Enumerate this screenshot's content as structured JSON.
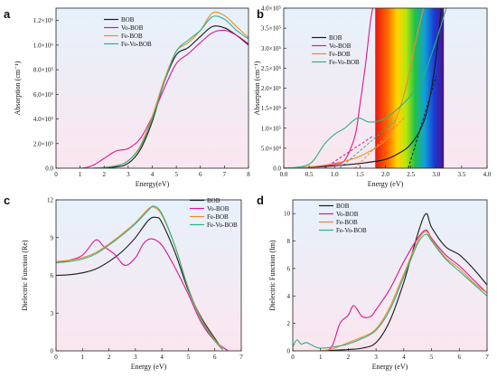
{
  "colors": {
    "BOB": "#1a1a1a",
    "Vo-BOB": "#e0168c",
    "Fe-BOB": "#f08a2c",
    "Fe-Vo-BOB": "#2bb383",
    "bg_top": "#e6f1fb",
    "bg_bottom": "#fbe6ef"
  },
  "chart_data": [
    {
      "panel": "a",
      "type": "line",
      "xlabel": "Energy(eV)",
      "ylabel": "Absorption (cm⁻¹)",
      "xlim": [
        0,
        8
      ],
      "ylim": [
        0,
        1300000
      ],
      "xticks": [
        "0",
        "1",
        "2",
        "3",
        "4",
        "5",
        "6",
        "7",
        "8"
      ],
      "yticks": [
        {
          "v": 0,
          "label": "0.0"
        },
        {
          "v": 200000,
          "label": "2.0×10⁵"
        },
        {
          "v": 400000,
          "label": "4.0×10⁵"
        },
        {
          "v": 600000,
          "label": "6.0×10⁵"
        },
        {
          "v": 800000,
          "label": "8.0×10⁵"
        },
        {
          "v": 1000000,
          "label": "1.0×10⁶"
        },
        {
          "v": 1200000,
          "label": "1.2×10⁶"
        }
      ],
      "legend": [
        "BOB",
        "Vo-BOB",
        "Fe-BOB",
        "Fe-Vo-BOB"
      ],
      "series": [
        {
          "name": "BOB",
          "x": [
            0,
            1.5,
            2.5,
            3,
            3.5,
            4,
            4.5,
            5,
            5.5,
            6,
            6.5,
            7,
            7.5,
            8
          ],
          "y": [
            0,
            0,
            10000,
            40000,
            150000,
            380000,
            700000,
            920000,
            980000,
            1070000,
            1150000,
            1140000,
            1080000,
            1000000
          ]
        },
        {
          "name": "Vo-BOB",
          "x": [
            0,
            1,
            1.5,
            2,
            2.5,
            3,
            3.5,
            4,
            4.5,
            5,
            5.5,
            6,
            6.5,
            7,
            7.5,
            8
          ],
          "y": [
            0,
            0,
            20000,
            80000,
            140000,
            160000,
            240000,
            420000,
            650000,
            850000,
            930000,
            1020000,
            1100000,
            1120000,
            1080000,
            1010000
          ]
        },
        {
          "name": "Fe-BOB",
          "x": [
            0,
            1.5,
            2.5,
            3,
            3.5,
            4,
            4.5,
            5,
            5.5,
            6,
            6.5,
            7,
            7.5,
            8
          ],
          "y": [
            0,
            0,
            20000,
            60000,
            180000,
            420000,
            720000,
            950000,
            1020000,
            1120000,
            1260000,
            1240000,
            1150000,
            1060000
          ]
        },
        {
          "name": "Fe-Vo-BOB",
          "x": [
            0,
            1.5,
            2.5,
            3,
            3.5,
            4,
            4.5,
            5,
            5.5,
            6,
            6.5,
            7,
            7.5,
            8
          ],
          "y": [
            0,
            0,
            20000,
            60000,
            170000,
            400000,
            700000,
            950000,
            1040000,
            1120000,
            1230000,
            1210000,
            1120000,
            1050000
          ]
        }
      ]
    },
    {
      "panel": "b",
      "type": "line",
      "xlabel": "Energy (eV)",
      "ylabel": "Absorption (cm⁻¹)",
      "xlim": [
        0,
        4
      ],
      "ylim": [
        0,
        400000
      ],
      "xticks": [
        "0.0",
        "0.5",
        "1.0",
        "1.5",
        "2.0",
        "2.5",
        "3.0",
        "3.5",
        "4.0"
      ],
      "yticks": [
        {
          "v": 0,
          "label": "0.0"
        },
        {
          "v": 50000,
          "label": "5.0×10⁴"
        },
        {
          "v": 100000,
          "label": "1.0×10⁵"
        },
        {
          "v": 150000,
          "label": "1.5×10⁵"
        },
        {
          "v": 200000,
          "label": "2.0×10⁵"
        },
        {
          "v": 250000,
          "label": "2.5×10⁵"
        },
        {
          "v": 300000,
          "label": "3.0×10⁵"
        },
        {
          "v": 350000,
          "label": "3.5×10⁵"
        },
        {
          "v": 400000,
          "label": "4.0×10⁵"
        }
      ],
      "visible_spectrum_ev": [
        1.8,
        3.15
      ],
      "legend": [
        "BOB",
        "Vo-BOB",
        "Fe-BOB",
        "Fe-Vo-BOB"
      ],
      "series": [
        {
          "name": "BOB",
          "x": [
            0,
            0.5,
            1,
            1.5,
            2,
            2.3,
            2.5,
            2.7,
            2.85,
            3.0,
            3.1
          ],
          "y": [
            0,
            2000,
            6000,
            12000,
            22000,
            40000,
            60000,
            100000,
            160000,
            280000,
            400000
          ]
        },
        {
          "name": "Vo-BOB",
          "x": [
            0,
            0.5,
            1,
            1.2,
            1.4,
            1.5,
            1.6,
            1.7,
            1.75
          ],
          "y": [
            0,
            3000,
            10000,
            20000,
            80000,
            160000,
            250000,
            360000,
            400000
          ]
        },
        {
          "name": "Fe-BOB",
          "x": [
            0,
            0.5,
            1,
            1.5,
            2,
            2.2,
            2.4,
            2.6,
            2.75
          ],
          "y": [
            0,
            3000,
            12000,
            30000,
            70000,
            120000,
            200000,
            320000,
            400000
          ]
        },
        {
          "name": "Fe-Vo-BOB",
          "x": [
            0,
            0.5,
            0.8,
            1.0,
            1.2,
            1.45,
            1.7,
            2.0,
            2.3,
            2.55,
            2.75,
            3.0,
            3.2
          ],
          "y": [
            0,
            10000,
            60000,
            85000,
            100000,
            125000,
            115000,
            125000,
            155000,
            190000,
            230000,
            320000,
            400000
          ]
        }
      ],
      "fits": [
        {
          "x": [
            0.8,
            1.75
          ],
          "y": [
            0,
            80000
          ],
          "color": "#e0168c"
        },
        {
          "x": [
            1.1,
            2.2
          ],
          "y": [
            0,
            120000
          ],
          "color": "#2bb383"
        },
        {
          "x": [
            1.4,
            2.4
          ],
          "y": [
            0,
            130000
          ],
          "color": "#f08a2c"
        },
        {
          "x": [
            2.45,
            3.0
          ],
          "y": [
            0,
            230000
          ],
          "color": "#1a1a1a"
        }
      ]
    },
    {
      "panel": "c",
      "type": "line",
      "xlabel": "Energy (eV)",
      "ylabel": "Dielectric Function (Re)",
      "xlim": [
        0,
        7
      ],
      "ylim": [
        0,
        12
      ],
      "xticks": [
        "0",
        "1",
        "2",
        "3",
        "4",
        "5",
        "6",
        "7"
      ],
      "yticks": [
        {
          "v": 0,
          "label": "0"
        },
        {
          "v": 3,
          "label": "3"
        },
        {
          "v": 6,
          "label": "6"
        },
        {
          "v": 9,
          "label": "9"
        },
        {
          "v": 12,
          "label": "12"
        }
      ],
      "legend": [
        "BOB",
        "Vo-BOB",
        "Fe-BOB",
        "Fe-Vo-BOB"
      ],
      "series": [
        {
          "name": "BOB",
          "x": [
            0,
            0.5,
            1,
            1.5,
            2,
            2.5,
            3,
            3.5,
            3.8,
            4,
            4.5,
            5,
            5.5,
            6,
            6.3
          ],
          "y": [
            6.0,
            6.05,
            6.2,
            6.5,
            7.1,
            7.9,
            9.0,
            10.4,
            10.6,
            10.2,
            7.8,
            4.8,
            2.6,
            1.0,
            0.1
          ]
        },
        {
          "name": "Vo-BOB",
          "x": [
            0,
            0.5,
            1,
            1.5,
            1.8,
            2.2,
            2.6,
            3.0,
            3.3,
            3.6,
            4,
            4.5,
            5,
            5.5,
            6,
            6.5
          ],
          "y": [
            7.0,
            7.2,
            7.6,
            8.8,
            8.3,
            7.7,
            6.8,
            7.4,
            8.5,
            8.9,
            8.4,
            6.6,
            4.5,
            2.2,
            0.8,
            0.0
          ]
        },
        {
          "name": "Fe-BOB",
          "x": [
            0,
            0.5,
            1,
            1.5,
            2,
            2.5,
            3,
            3.5,
            3.7,
            4,
            4.5,
            5,
            5.5,
            6,
            6.3
          ],
          "y": [
            7.1,
            7.2,
            7.4,
            7.8,
            8.5,
            9.3,
            10.2,
            11.3,
            11.4,
            10.8,
            8.3,
            5.0,
            2.5,
            0.9,
            0.2
          ]
        },
        {
          "name": "Fe-Vo-BOB",
          "x": [
            0,
            0.5,
            1,
            1.5,
            2,
            2.5,
            3,
            3.5,
            3.7,
            4,
            4.5,
            5,
            5.5,
            6,
            6.3
          ],
          "y": [
            7.0,
            7.1,
            7.3,
            7.7,
            8.4,
            9.2,
            10.1,
            11.2,
            11.5,
            10.9,
            8.3,
            4.9,
            2.4,
            0.8,
            0.1
          ]
        }
      ]
    },
    {
      "panel": "d",
      "type": "line",
      "xlabel": "Energy (eV)",
      "ylabel": "Dielectric Function (Im)",
      "xlim": [
        0,
        7
      ],
      "ylim": [
        0,
        11
      ],
      "xticks": [
        "0",
        "1",
        "2",
        "3",
        "4",
        "5",
        "6",
        "7"
      ],
      "yticks": [
        {
          "v": 0,
          "label": "0"
        },
        {
          "v": 2,
          "label": "2"
        },
        {
          "v": 4,
          "label": "4"
        },
        {
          "v": 6,
          "label": "6"
        },
        {
          "v": 8,
          "label": "8"
        },
        {
          "v": 10,
          "label": "10"
        }
      ],
      "legend": [
        "BOB",
        "Vo-BOB",
        "Fe-BOB",
        "Fe-Vo-BOB"
      ],
      "series": [
        {
          "name": "BOB",
          "x": [
            0,
            1,
            2,
            2.5,
            3,
            3.5,
            4,
            4.5,
            4.8,
            5,
            5.5,
            6,
            6.5,
            7
          ],
          "y": [
            0,
            0,
            0.1,
            0.2,
            0.6,
            2.2,
            5.0,
            8.5,
            10.0,
            9.0,
            7.6,
            7.0,
            6.0,
            4.8
          ]
        },
        {
          "name": "Vo-BOB",
          "x": [
            0,
            1,
            1.4,
            1.7,
            2.0,
            2.2,
            2.5,
            2.8,
            3,
            3.5,
            4,
            4.5,
            4.8,
            5,
            5.5,
            6,
            6.5,
            7
          ],
          "y": [
            0,
            0,
            0.3,
            2.0,
            2.6,
            3.3,
            2.5,
            2.5,
            3.0,
            4.5,
            6.5,
            8.2,
            8.8,
            8.2,
            7.0,
            6.2,
            5.2,
            4.2
          ]
        },
        {
          "name": "Fe-BOB",
          "x": [
            0,
            1,
            1.5,
            2,
            2.5,
            3,
            3.5,
            4,
            4.5,
            4.8,
            5,
            5.5,
            6,
            6.5,
            7
          ],
          "y": [
            0,
            0,
            0.2,
            0.6,
            1.0,
            1.6,
            3.2,
            5.6,
            8.0,
            8.7,
            8.1,
            6.8,
            6.0,
            5.0,
            4.2
          ]
        },
        {
          "name": "Fe-Vo-BOB",
          "x": [
            0,
            0.15,
            0.3,
            0.5,
            0.8,
            1,
            1.5,
            2,
            2.5,
            3,
            3.5,
            4,
            4.5,
            4.8,
            5,
            5.5,
            6,
            6.5,
            7
          ],
          "y": [
            0.3,
            0.8,
            0.5,
            0.6,
            0.3,
            0.2,
            0.3,
            0.5,
            0.9,
            1.5,
            3.0,
            5.4,
            7.8,
            8.5,
            8.0,
            6.7,
            5.8,
            4.9,
            4.0
          ]
        }
      ]
    }
  ]
}
